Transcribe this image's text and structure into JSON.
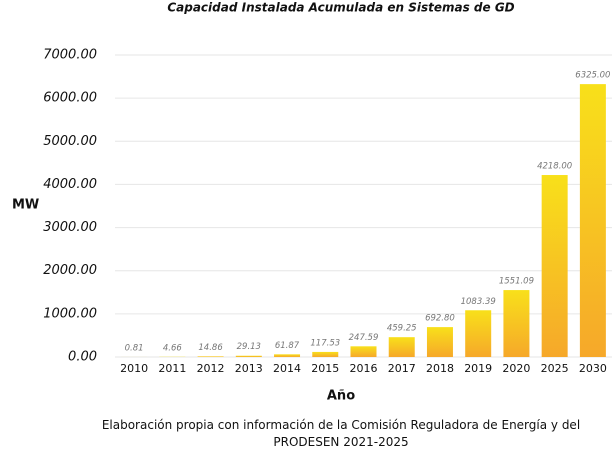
{
  "chart_data": {
    "type": "bar",
    "title": "Capacidad Instalada Acumulada en Sistemas de GD",
    "x_label": "Año",
    "y_label": "MW",
    "source": "Elaboración propia con información de la Comisión Reguladora de Energía y del PRODESEN 2021-2025",
    "categories": [
      "2010",
      "2011",
      "2012",
      "2013",
      "2014",
      "2015",
      "2016",
      "2017",
      "2018",
      "2019",
      "2020",
      "2025",
      "2030"
    ],
    "values": [
      0.81,
      4.66,
      14.86,
      29.13,
      61.87,
      117.53,
      247.59,
      459.25,
      692.8,
      1083.39,
      1551.09,
      4218,
      6325
    ],
    "value_labels": [
      "0.81",
      "4.66",
      "14.86",
      "29.13",
      "61.87",
      "117.53",
      "247.59",
      "459.25",
      "692.80",
      "1083.39",
      "1551.09",
      "4218.00",
      "6325.00"
    ],
    "color": {
      "top": "#f8e01a",
      "bottom": "#f6a82a"
    },
    "ylim": [
      0,
      7000
    ],
    "yticks": [
      {
        "value": 0,
        "label": "0.00"
      },
      {
        "value": 1000,
        "label": "1000.00"
      },
      {
        "value": 2000,
        "label": "2000.00"
      },
      {
        "value": 3000,
        "label": "3000.00"
      },
      {
        "value": 4000,
        "label": "4000.00"
      },
      {
        "value": 5000,
        "label": "5000.00"
      },
      {
        "value": 6000,
        "label": "6000.00"
      },
      {
        "value": 7000,
        "label": "7000.00"
      }
    ],
    "grid": true
  }
}
